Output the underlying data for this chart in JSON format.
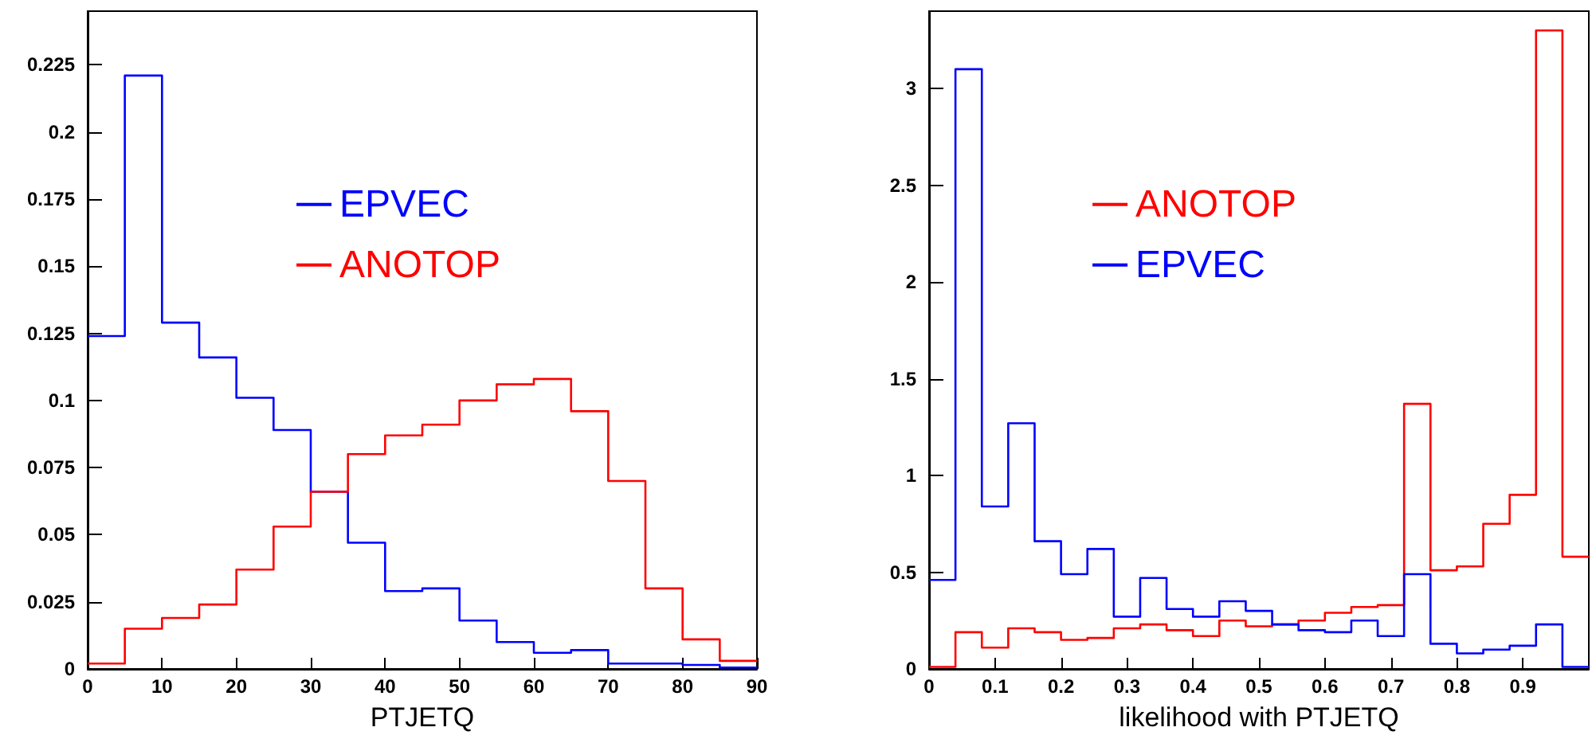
{
  "chart_data": [
    {
      "type": "histogram",
      "xlabel": "PTJETQ",
      "bins": [
        0,
        5,
        10,
        15,
        20,
        25,
        30,
        35,
        40,
        45,
        50,
        55,
        60,
        65,
        70,
        75,
        80,
        85,
        90
      ],
      "xlim": [
        0,
        90
      ],
      "xticks": [
        0,
        10,
        20,
        30,
        40,
        50,
        60,
        70,
        80,
        90
      ],
      "ylim": [
        0,
        0.245
      ],
      "yticks": [
        0,
        0.025,
        0.05,
        0.075,
        0.1,
        0.125,
        0.15,
        0.175,
        0.2,
        0.225
      ],
      "grid": false,
      "legend": "top center",
      "series": [
        {
          "name": "EPVEC",
          "color": "#0000ff",
          "values": [
            0.124,
            0.221,
            0.129,
            0.116,
            0.101,
            0.089,
            0.066,
            0.047,
            0.029,
            0.03,
            0.018,
            0.01,
            0.006,
            0.007,
            0.002,
            0.002,
            0.0015,
            0.0005
          ]
        },
        {
          "name": "ANOTOP",
          "color": "#ff0000",
          "values": [
            0.002,
            0.015,
            0.019,
            0.024,
            0.037,
            0.053,
            0.066,
            0.08,
            0.087,
            0.091,
            0.1,
            0.106,
            0.108,
            0.096,
            0.07,
            0.03,
            0.011,
            0.003
          ]
        }
      ]
    },
    {
      "type": "histogram",
      "xlabel": "likelihood with PTJETQ",
      "bins": [
        0,
        0.04,
        0.08,
        0.12,
        0.16,
        0.2,
        0.24,
        0.28,
        0.32,
        0.36,
        0.4,
        0.44,
        0.48,
        0.52,
        0.56,
        0.6,
        0.64,
        0.68,
        0.72,
        0.76,
        0.8,
        0.84,
        0.88,
        0.92,
        0.96,
        1
      ],
      "xlim": [
        0,
        1
      ],
      "xticks": [
        0,
        0.1,
        0.2,
        0.3,
        0.4,
        0.5,
        0.6,
        0.7,
        0.8,
        0.9
      ],
      "ylim": [
        0,
        3.4
      ],
      "yticks": [
        0,
        0.5,
        1,
        1.5,
        2,
        2.5,
        3
      ],
      "grid": false,
      "legend": "top center",
      "series": [
        {
          "name": "ANOTOP",
          "color": "#ff0000",
          "values": [
            0.01,
            0.19,
            0.11,
            0.21,
            0.19,
            0.15,
            0.16,
            0.21,
            0.23,
            0.2,
            0.17,
            0.25,
            0.22,
            0.23,
            0.25,
            0.29,
            0.32,
            0.33,
            1.37,
            0.51,
            0.53,
            0.75,
            0.9,
            3.3,
            0.58
          ]
        },
        {
          "name": "EPVEC",
          "color": "#0000ff",
          "values": [
            0.46,
            3.1,
            0.84,
            1.27,
            0.66,
            0.49,
            0.62,
            0.27,
            0.47,
            0.31,
            0.27,
            0.35,
            0.3,
            0.23,
            0.2,
            0.19,
            0.25,
            0.17,
            0.49,
            0.13,
            0.08,
            0.1,
            0.12,
            0.23,
            0.01
          ]
        }
      ]
    }
  ]
}
